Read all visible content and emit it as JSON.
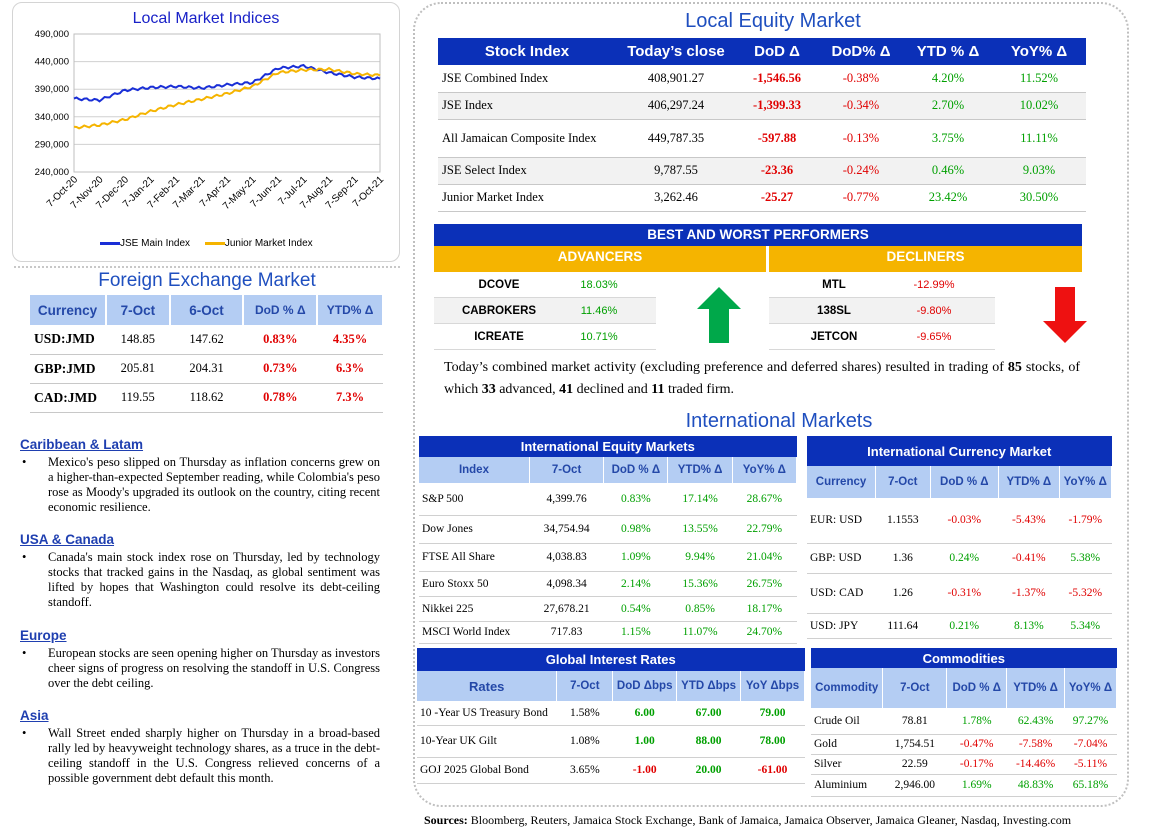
{
  "chart": {
    "title": "Local Market Indices",
    "y_ticks": [
      "490,000",
      "440,000",
      "390,000",
      "340,000",
      "290,000",
      "240,000"
    ],
    "x_ticks": [
      "7-Oct-20",
      "7-Nov-20",
      "7-Dec-20",
      "7-Jan-21",
      "7-Feb-21",
      "7-Mar-21",
      "7-Apr-21",
      "7-May-21",
      "7-Jun-21",
      "7-Jul-21",
      "7-Aug-21",
      "7-Sep-21",
      "7-Oct-21"
    ],
    "legend": [
      "JSE Main Index",
      "Junior Market Index"
    ],
    "colors": {
      "main": "#1a2fd6",
      "junior": "#f5b400"
    }
  },
  "chart_data": {
    "type": "line",
    "ylim": [
      240000,
      490000
    ],
    "x": [
      "7-Oct-20",
      "7-Nov-20",
      "7-Dec-20",
      "7-Jan-21",
      "7-Feb-21",
      "7-Mar-21",
      "7-Apr-21",
      "7-May-21",
      "7-Jun-21",
      "7-Jul-21",
      "7-Aug-21",
      "7-Sep-21",
      "7-Oct-21"
    ],
    "series": [
      {
        "name": "JSE Main Index",
        "values": [
          373000,
          370000,
          388000,
          393000,
          395000,
          392000,
          398000,
          402000,
          428000,
          432000,
          420000,
          412000,
          409000
        ]
      },
      {
        "name": "Junior Market Index",
        "values": [
          320000,
          325000,
          335000,
          350000,
          362000,
          372000,
          382000,
          395000,
          420000,
          425000,
          426000,
          418000,
          415000
        ]
      }
    ]
  },
  "fx": {
    "title": "Foreign Exchange Market",
    "headers": [
      "Currency",
      "7-Oct",
      "6-Oct",
      "DoD % Δ",
      "YTD% Δ"
    ],
    "rows": [
      {
        "c": "USD:JMD",
        "a": "148.85",
        "b": "147.62",
        "d": "0.83%",
        "y": "4.35%"
      },
      {
        "c": "GBP:JMD",
        "a": "205.81",
        "b": "204.31",
        "d": "0.73%",
        "y": "6.3%"
      },
      {
        "c": "CAD:JMD",
        "a": "119.55",
        "b": "118.62",
        "d": "0.78%",
        "y": "7.3%"
      }
    ]
  },
  "news": [
    {
      "head": "Caribbean & Latam",
      "body": "Mexico's peso slipped on Thursday as inflation concerns grew on a higher-than-expected September reading, while Colombia's peso rose as Moody's upgraded its outlook on the country, citing recent economic resilience."
    },
    {
      "head": "USA & Canada",
      "body": "Canada's main stock index rose on Thursday, led by technology stocks that tracked gains in the Nasdaq, as global sentiment was lifted by hopes that Washington could resolve its debt-ceiling standoff."
    },
    {
      "head": "Europe",
      "body": "European stocks are seen opening higher on Thursday as investors cheer signs of progress on resolving the standoff in U.S. Congress over the debt ceiling."
    },
    {
      "head": "Asia",
      "body": "Wall Street ended sharply higher on Thursday in a broad-based rally led by heavyweight technology shares, as a truce in the debt-ceiling standoff in the U.S. Congress relieved concerns of a possible government debt default this month."
    }
  ],
  "equity": {
    "title": "Local Equity Market",
    "headers": [
      "Stock Index",
      "Today’s close",
      "DoD  Δ",
      "DoD% Δ",
      "YTD % Δ",
      "YoY% Δ"
    ],
    "rows": [
      {
        "n": "JSE Combined Index",
        "c": "408,901.27",
        "d": "-1,546.56",
        "p": "-0.38%",
        "y": "4.20%",
        "o": "11.52%"
      },
      {
        "n": "JSE Index",
        "c": "406,297.24",
        "d": "-1,399.33",
        "p": "-0.34%",
        "y": "2.70%",
        "o": "10.02%"
      },
      {
        "n": "All Jamaican Composite Index",
        "c": "449,787.35",
        "d": "-597.88",
        "p": "-0.13%",
        "y": "3.75%",
        "o": "11.11%"
      },
      {
        "n": "JSE Select Index",
        "c": "9,787.55",
        "d": "-23.36",
        "p": "-0.24%",
        "y": "0.46%",
        "o": "9.03%"
      },
      {
        "n": "Junior Market Index",
        "c": "3,262.46",
        "d": "-25.27",
        "p": "-0.77%",
        "y": "23.42%",
        "o": "30.50%"
      }
    ]
  },
  "performers": {
    "title": "BEST AND WORST PERFORMERS",
    "adv_label": "ADVANCERS",
    "dec_label": "DECLINERS",
    "advancers": [
      {
        "s": "DCOVE",
        "v": "18.03%"
      },
      {
        "s": "CABROKERS",
        "v": "11.46%"
      },
      {
        "s": "ICREATE",
        "v": "10.71%"
      }
    ],
    "decliners": [
      {
        "s": "MTL",
        "v": "-12.99%"
      },
      {
        "s": "138SL",
        "v": "-9.80%"
      },
      {
        "s": "JETCON",
        "v": "-9.65%"
      }
    ]
  },
  "activity": {
    "t1": "Today’s combined market activity (excluding preference and deferred shares) resulted in trading of ",
    "n1": "85",
    "t2": "stocks, of which ",
    "n2": "33",
    "t3": " advanced, ",
    "n3": "41",
    "t4": " declined and ",
    "n4": "11",
    "t5": " traded firm."
  },
  "intl": {
    "title": "International Markets",
    "equity": {
      "title": "International Equity Markets",
      "headers": [
        "Index",
        "7-Oct",
        "DoD % Δ",
        "YTD% Δ",
        "YoY% Δ"
      ],
      "rows": [
        {
          "n": "S&P 500",
          "a": "4,399.76",
          "d": "0.83%",
          "y": "17.14%",
          "o": "28.67%"
        },
        {
          "n": "Dow Jones",
          "a": "34,754.94",
          "d": "0.98%",
          "y": "13.55%",
          "o": "22.79%"
        },
        {
          "n": "FTSE All Share",
          "a": "4,038.83",
          "d": "1.09%",
          "y": "9.94%",
          "o": "21.04%"
        },
        {
          "n": "Euro Stoxx 50",
          "a": "4,098.34",
          "d": "2.14%",
          "y": "15.36%",
          "o": "26.75%"
        },
        {
          "n": "Nikkei 225",
          "a": "27,678.21",
          "d": "0.54%",
          "y": "0.85%",
          "o": "18.17%"
        },
        {
          "n": "MSCI World Index",
          "a": "717.83",
          "d": "1.15%",
          "y": "11.07%",
          "o": "24.70%"
        }
      ]
    },
    "currency": {
      "title": "International Currency Market",
      "headers": [
        "Currency",
        "7-Oct",
        "DoD % Δ",
        "YTD% Δ",
        "YoY% Δ"
      ],
      "rows": [
        {
          "n": "EUR: USD",
          "a": "1.1553",
          "d": "-0.03%",
          "y": "-5.43%",
          "o": "-1.79%"
        },
        {
          "n": "GBP: USD",
          "a": "1.36",
          "d": "0.24%",
          "y": "-0.41%",
          "o": "5.38%"
        },
        {
          "n": "USD: CAD",
          "a": "1.26",
          "d": "-0.31%",
          "y": "-1.37%",
          "o": "-5.32%"
        },
        {
          "n": "USD: JPY",
          "a": "111.64",
          "d": "0.21%",
          "y": "8.13%",
          "o": "5.34%"
        }
      ]
    },
    "rates": {
      "title": "Global Interest Rates",
      "headers": [
        "Rates",
        "7-Oct",
        "DoD Δbps",
        "YTD Δbps",
        "YoY Δbps"
      ],
      "rows": [
        {
          "n": "10 -Year US Treasury Bond",
          "a": "1.58%",
          "d": "6.00",
          "y": "67.00",
          "o": "79.00"
        },
        {
          "n": "10-Year UK Gilt",
          "a": "1.08%",
          "d": "1.00",
          "y": "88.00",
          "o": "78.00"
        },
        {
          "n": "GOJ 2025 Global Bond",
          "a": "3.65%",
          "d": "-1.00",
          "y": "20.00",
          "o": "-61.00"
        }
      ]
    },
    "commodities": {
      "title": "Commodities",
      "headers": [
        "Commodity",
        "7-Oct",
        "DoD % Δ",
        "YTD% Δ",
        "YoY% Δ"
      ],
      "rows": [
        {
          "n": "Crude Oil",
          "a": "78.81",
          "d": "1.78%",
          "y": "62.43%",
          "o": "97.27%"
        },
        {
          "n": "Gold",
          "a": "1,754.51",
          "d": "-0.47%",
          "y": "-7.58%",
          "o": "-7.04%"
        },
        {
          "n": "Silver",
          "a": "22.59",
          "d": "-0.17%",
          "y": "-14.46%",
          "o": "-5.11%"
        },
        {
          "n": "Aluminium",
          "a": "2,946.00",
          "d": "1.69%",
          "y": "48.83%",
          "o": "65.18%"
        }
      ]
    }
  },
  "sources": {
    "label": "Sources:",
    "text": " Bloomberg, Reuters, Jamaica Stock Exchange, Bank of Jamaica, Jamaica Observer, Jamaica Gleaner, Nasdaq, Investing.com"
  },
  "colors": {
    "header_blue": "#0b30b8",
    "header_light": "#b4cdf3",
    "gold": "#f5b400",
    "up_green": "#00a000",
    "down_red": "#e00000"
  }
}
